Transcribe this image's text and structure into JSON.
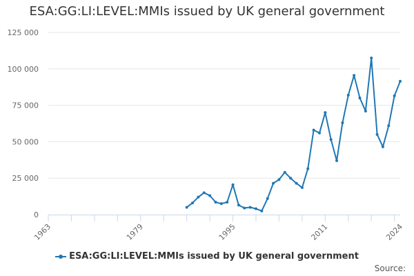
{
  "title": "ESA:GG:LI:LEVEL:MMIs issued by UK general government",
  "source_label": "Source:",
  "colors": {
    "series": "#1f77b4",
    "grid": "#e6e6e6",
    "axis": "#ccd6eb"
  },
  "chart_data": {
    "type": "line",
    "title": "ESA:GG:LI:LEVEL:MMIs issued by UK general government",
    "xlabel": "",
    "ylabel": "",
    "xlim": [
      1963,
      2024
    ],
    "ylim": [
      0,
      125000
    ],
    "x_ticks": [
      "1963",
      "1979",
      "1995",
      "2011",
      "2024"
    ],
    "y_ticks": [
      "0",
      "25 000",
      "50 000",
      "75 000",
      "100 000",
      "125 000"
    ],
    "y_tick_values": [
      0,
      25000,
      50000,
      75000,
      100000,
      125000
    ],
    "grid": true,
    "legend_position": "bottom",
    "series": [
      {
        "name": "ESA:GG:LI:LEVEL:MMIs issued by UK general government",
        "x": [
          1987,
          1988,
          1989,
          1990,
          1991,
          1992,
          1993,
          1994,
          1995,
          1996,
          1997,
          1998,
          1999,
          2000,
          2001,
          2002,
          2003,
          2004,
          2005,
          2006,
          2007,
          2008,
          2009,
          2010,
          2011,
          2012,
          2013,
          2014,
          2015,
          2016,
          2017,
          2018,
          2019,
          2020,
          2021,
          2022,
          2023,
          2024
        ],
        "values": [
          5000,
          8000,
          12000,
          15000,
          13000,
          8500,
          7500,
          8500,
          20500,
          6500,
          4500,
          5000,
          4000,
          2500,
          11000,
          21500,
          24000,
          29000,
          25000,
          21500,
          18500,
          31500,
          58000,
          56000,
          70000,
          51500,
          37000,
          63000,
          82000,
          95500,
          80000,
          71000,
          107500,
          55000,
          46500,
          61000,
          81500,
          91500
        ]
      }
    ]
  }
}
